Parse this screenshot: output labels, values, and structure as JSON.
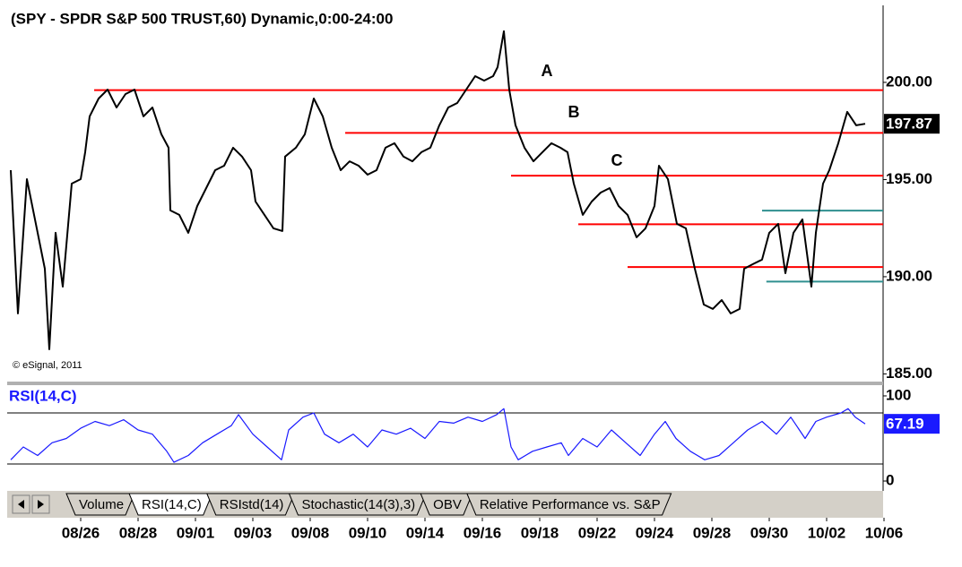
{
  "chart_data": [
    {
      "type": "line",
      "title": "(SPY - SPDR S&P 500 TRUST,60) Dynamic,0:00-24:00",
      "annotation": "© eSignal, 2011",
      "color": "#000000",
      "xlim": [
        -10.25,
        111.875
      ],
      "ylim": [
        184.65,
        203.87
      ],
      "yticks": [
        {
          "value": 185,
          "label": "185.00"
        },
        {
          "value": 190,
          "label": "190.00"
        },
        {
          "value": 195,
          "label": "195.00"
        },
        {
          "value": 200,
          "label": "200.00"
        }
      ],
      "last_value": 197.87,
      "x": [
        -9.75,
        -8.75,
        -7.5,
        -6.25,
        -5,
        -4.38,
        -3.5,
        -2.5,
        -1.25,
        0,
        0.63,
        1.25,
        2.5,
        3.75,
        5,
        6.25,
        7.5,
        8.75,
        10,
        11.25,
        12.25,
        12.5,
        13.75,
        15,
        16.25,
        17.5,
        18.75,
        20,
        21.25,
        22.5,
        23.75,
        24.38,
        25.63,
        26.88,
        28.13,
        28.5,
        30,
        31.25,
        32.5,
        33.75,
        35,
        36.25,
        37.5,
        38.75,
        40,
        41.25,
        42.5,
        43.75,
        45,
        46.25,
        47.5,
        48.75,
        50,
        51.25,
        52.5,
        53.75,
        55,
        56.25,
        57.5,
        58.13,
        59,
        59.75,
        60.63,
        61.88,
        63.13,
        64.38,
        65.63,
        66.88,
        67.88,
        68.75,
        70,
        71.25,
        72.5,
        73.75,
        75,
        76.25,
        77.5,
        78.75,
        80,
        80.63,
        81.88,
        83.13,
        84.38,
        85.63,
        86.88,
        88.13,
        89.38,
        90.63,
        91.88,
        92.5,
        93.75,
        95,
        96,
        97.25,
        98.25,
        99.38,
        100.63,
        101.88,
        102.5,
        103.5,
        104.38,
        105.63,
        106.88,
        108.13,
        109.38
      ],
      "values": [
        195.48,
        188.11,
        195.02,
        192.72,
        190.41,
        186.27,
        192.26,
        189.49,
        194.79,
        195.02,
        196.41,
        198.25,
        199.17,
        199.63,
        198.71,
        199.4,
        199.63,
        198.25,
        198.71,
        197.33,
        196.64,
        193.41,
        193.18,
        192.26,
        193.64,
        194.56,
        195.48,
        195.71,
        196.64,
        196.18,
        195.48,
        193.87,
        193.18,
        192.49,
        192.35,
        196.18,
        196.64,
        197.33,
        199.17,
        198.25,
        196.64,
        195.48,
        195.94,
        195.71,
        195.25,
        195.48,
        196.64,
        196.87,
        196.18,
        195.94,
        196.41,
        196.64,
        197.79,
        198.71,
        198.94,
        199.63,
        200.32,
        200.09,
        200.32,
        200.78,
        202.63,
        199.63,
        197.79,
        196.64,
        195.94,
        196.41,
        196.87,
        196.64,
        196.41,
        194.79,
        193.18,
        193.87,
        194.33,
        194.56,
        193.64,
        193.18,
        192.03,
        192.49,
        193.64,
        195.71,
        195.02,
        192.72,
        192.49,
        190.41,
        188.57,
        188.34,
        188.8,
        188.11,
        188.34,
        190.41,
        190.65,
        190.88,
        192.26,
        192.72,
        190.18,
        192.26,
        192.95,
        189.49,
        192.26,
        194.79,
        195.48,
        196.87,
        198.48,
        197.79,
        197.87
      ],
      "levels": [
        {
          "value": 199.6,
          "from": 1.88,
          "color": "#ff0000"
        },
        {
          "value": 197.4,
          "from": 36.88,
          "color": "#ff0000"
        },
        {
          "value": 195.2,
          "from": 60,
          "color": "#ff0000"
        },
        {
          "value": 192.7,
          "from": 69.38,
          "color": "#ff0000"
        },
        {
          "value": 190.5,
          "from": 76.25,
          "color": "#ff0000"
        },
        {
          "value": 193.4,
          "from": 95,
          "color": "#2f8f8f"
        },
        {
          "value": 189.75,
          "from": 95.6,
          "color": "#2f8f8f"
        }
      ],
      "labels": [
        {
          "text": "A",
          "x": 65,
          "y": 200.55
        },
        {
          "text": "B",
          "x": 68.75,
          "y": 198.43
        },
        {
          "text": "C",
          "x": 74.75,
          "y": 195.94
        }
      ]
    },
    {
      "type": "line",
      "title": "RSI(14,C)",
      "color": "#1a1aff",
      "xlim": [
        -10.25,
        111.875
      ],
      "ylim": [
        -10.5,
        112.6
      ],
      "yticks": [
        0,
        100
      ],
      "levels": [
        80,
        20
      ],
      "last_value": 67.19,
      "x": [
        -9.75,
        -8,
        -6,
        -4,
        -2,
        0,
        2,
        4,
        6,
        8,
        10,
        12,
        13,
        15,
        17,
        19,
        21,
        22,
        24,
        26,
        28,
        29,
        31,
        32.5,
        34,
        36,
        38,
        40,
        42,
        44,
        46,
        48,
        50,
        52,
        54,
        56,
        58,
        59,
        60,
        61,
        63,
        65,
        67,
        68,
        70,
        72,
        74,
        76,
        78,
        80,
        81.5,
        83,
        85,
        87,
        89,
        91,
        93,
        95,
        97,
        99,
        101,
        102.5,
        104,
        106,
        107,
        108,
        109.38
      ],
      "values": [
        25,
        40,
        30,
        45,
        50,
        62,
        70,
        65,
        72,
        60,
        55,
        35,
        22,
        30,
        45,
        55,
        65,
        78,
        55,
        40,
        25,
        60,
        75,
        80,
        55,
        45,
        55,
        40,
        60,
        55,
        62,
        50,
        70,
        68,
        75,
        70,
        78,
        85,
        40,
        25,
        35,
        40,
        45,
        30,
        50,
        40,
        60,
        45,
        30,
        55,
        70,
        50,
        35,
        25,
        30,
        45,
        60,
        70,
        55,
        75,
        50,
        70,
        75,
        80,
        85,
        75,
        67.19
      ],
      "xticks": [
        {
          "value": 0,
          "label": "08/26"
        },
        {
          "value": 8,
          "label": "08/28"
        },
        {
          "value": 16,
          "label": "09/01"
        },
        {
          "value": 24,
          "label": "09/03"
        },
        {
          "value": 32,
          "label": "09/08"
        },
        {
          "value": 40,
          "label": "09/10"
        },
        {
          "value": 48,
          "label": "09/14"
        },
        {
          "value": 56,
          "label": "09/16"
        },
        {
          "value": 64,
          "label": "09/18"
        },
        {
          "value": 72,
          "label": "09/22"
        },
        {
          "value": 80,
          "label": "09/24"
        },
        {
          "value": 88,
          "label": "09/28"
        },
        {
          "value": 96,
          "label": "09/30"
        },
        {
          "value": 104,
          "label": "10/02"
        },
        {
          "value": 112,
          "label": "10/06"
        }
      ]
    }
  ],
  "tabs": [
    "Volume",
    "RSI(14,C)",
    "RSIstd(14)",
    "Stochastic(14(3),3)",
    "OBV",
    "Relative Performance vs. S&P"
  ],
  "active_tab": 1
}
